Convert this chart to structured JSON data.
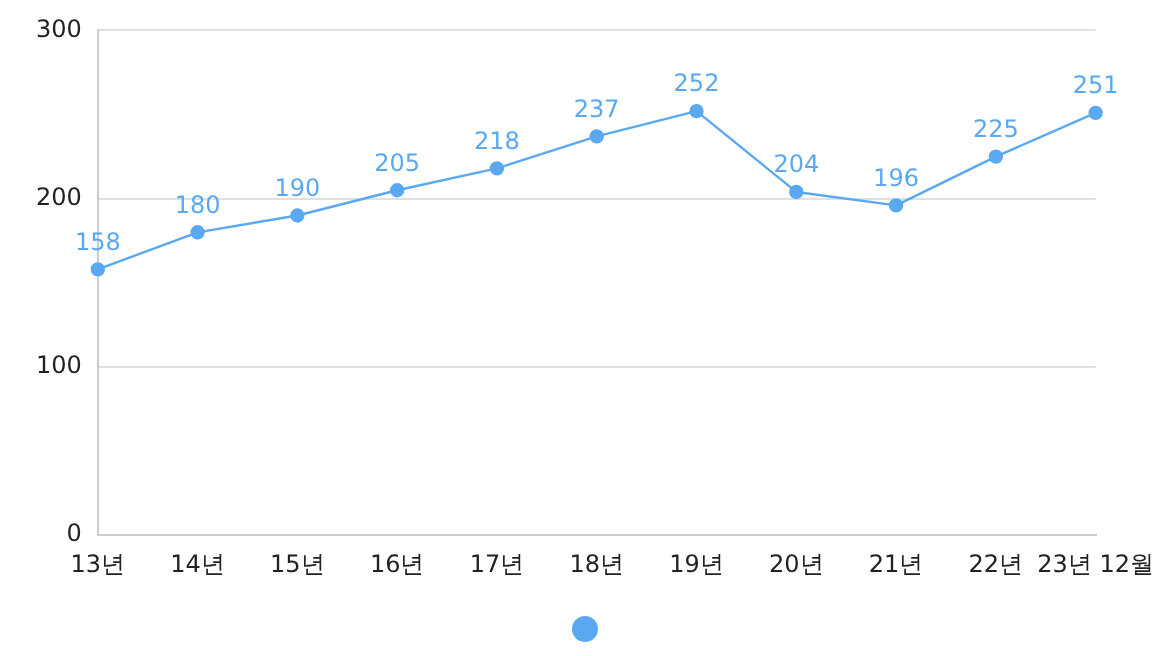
{
  "chart_data": {
    "type": "line",
    "categories": [
      "13년",
      "14년",
      "15년",
      "16년",
      "17년",
      "18년",
      "19년",
      "20년",
      "21년",
      "22년",
      "23년 12월"
    ],
    "series": [
      {
        "color": "#5aa9f0",
        "values": [
          158,
          180,
          190,
          205,
          218,
          237,
          252,
          204,
          196,
          225,
          251
        ]
      }
    ],
    "ylim": [
      0,
      300
    ],
    "yticks": [
      0,
      100,
      200,
      300
    ],
    "grid": "y",
    "marker": "circle",
    "data_labels": true
  }
}
